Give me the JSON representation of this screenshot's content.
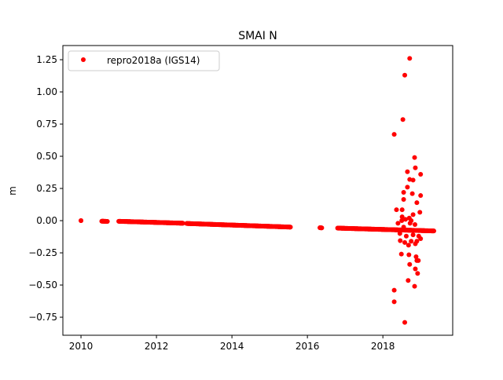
{
  "chart_data": {
    "type": "scatter",
    "title": "SMAI N",
    "xlabel": "",
    "ylabel": "m",
    "xlim": [
      2009.52,
      2019.85
    ],
    "ylim": [
      -0.89,
      1.36
    ],
    "xticks": [
      2010,
      2012,
      2014,
      2016,
      2018
    ],
    "xtick_labels": [
      "2010",
      "2012",
      "2014",
      "2016",
      "2018"
    ],
    "yticks": [
      -0.75,
      -0.5,
      -0.25,
      0,
      0.25,
      0.5,
      0.75,
      1.0,
      1.25
    ],
    "ytick_labels": [
      "−0.75",
      "−0.50",
      "−0.25",
      "0.00",
      "0.25",
      "0.50",
      "0.75",
      "1.00",
      "1.25"
    ],
    "grid": false,
    "legend": {
      "position": "top-left",
      "entries": [
        "repro2018a (IGS14)"
      ]
    },
    "color": "#ff0000",
    "series": [
      {
        "name": "repro2018a (IGS14)",
        "trend_segments": [
          {
            "x_start": 2010.0,
            "x_end": 2010.0,
            "y_start": 0.0,
            "y_end": 0.0
          },
          {
            "x_start": 2010.55,
            "x_end": 2010.7,
            "y_start": -0.004,
            "y_end": -0.006
          },
          {
            "x_start": 2011.0,
            "x_end": 2012.7,
            "y_start": -0.005,
            "y_end": -0.02
          },
          {
            "x_start": 2012.8,
            "x_end": 2015.55,
            "y_start": -0.022,
            "y_end": -0.05
          },
          {
            "x_start": 2016.33,
            "x_end": 2016.38,
            "y_start": -0.055,
            "y_end": -0.056
          },
          {
            "x_start": 2016.8,
            "x_end": 2019.35,
            "y_start": -0.058,
            "y_end": -0.08
          }
        ],
        "outliers": [
          [
            2018.71,
            1.26
          ],
          [
            2018.58,
            1.13
          ],
          [
            2018.53,
            0.785
          ],
          [
            2018.3,
            0.67
          ],
          [
            2018.84,
            0.49
          ],
          [
            2018.86,
            0.41
          ],
          [
            2019.0,
            0.36
          ],
          [
            2018.65,
            0.38
          ],
          [
            2018.71,
            0.32
          ],
          [
            2018.8,
            0.315
          ],
          [
            2018.65,
            0.26
          ],
          [
            2018.55,
            0.22
          ],
          [
            2018.78,
            0.21
          ],
          [
            2019.0,
            0.195
          ],
          [
            2018.55,
            0.165
          ],
          [
            2018.9,
            0.14
          ],
          [
            2018.36,
            0.085
          ],
          [
            2018.51,
            0.085
          ],
          [
            2018.98,
            0.065
          ],
          [
            2018.8,
            0.047
          ],
          [
            2018.51,
            0.03
          ],
          [
            2018.4,
            -0.02
          ],
          [
            2018.5,
            0.0
          ],
          [
            2018.6,
            0.01
          ],
          [
            2018.7,
            0.02
          ],
          [
            2018.75,
            0.0
          ],
          [
            2018.85,
            -0.03
          ],
          [
            2018.45,
            -0.1
          ],
          [
            2018.62,
            -0.12
          ],
          [
            2018.8,
            -0.11
          ],
          [
            2018.95,
            -0.12
          ],
          [
            2018.55,
            -0.05
          ],
          [
            2018.72,
            -0.02
          ],
          [
            2019.0,
            -0.14
          ],
          [
            2018.46,
            -0.155
          ],
          [
            2018.58,
            -0.17
          ],
          [
            2018.68,
            -0.19
          ],
          [
            2018.75,
            -0.16
          ],
          [
            2018.86,
            -0.18
          ],
          [
            2018.9,
            -0.16
          ],
          [
            2018.49,
            -0.26
          ],
          [
            2018.69,
            -0.265
          ],
          [
            2018.88,
            -0.28
          ],
          [
            2018.94,
            -0.31
          ],
          [
            2018.9,
            -0.31
          ],
          [
            2018.71,
            -0.34
          ],
          [
            2018.86,
            -0.375
          ],
          [
            2018.92,
            -0.41
          ],
          [
            2018.67,
            -0.465
          ],
          [
            2018.84,
            -0.51
          ],
          [
            2018.3,
            -0.54
          ],
          [
            2018.3,
            -0.63
          ],
          [
            2018.58,
            -0.79
          ]
        ]
      }
    ]
  }
}
